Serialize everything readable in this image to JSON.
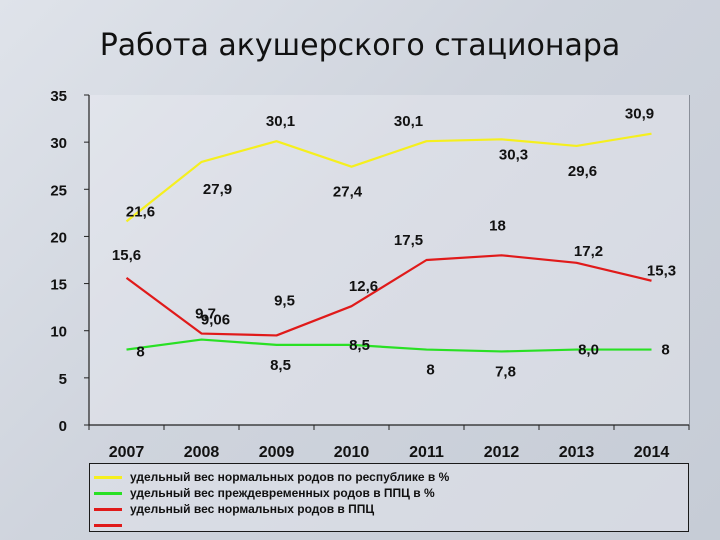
{
  "slide": {
    "title": "Работа акушерского стационара"
  },
  "chart_data": {
    "type": "line",
    "title": "",
    "xlabel": "",
    "ylabel": "",
    "categories": [
      "2007",
      "2008",
      "2009",
      "2010",
      "2011",
      "2012",
      "2013",
      "2014"
    ],
    "ylim": [
      0,
      35
    ],
    "yticks": [
      0,
      5,
      10,
      15,
      20,
      25,
      30,
      35
    ],
    "grid": false,
    "legend_position": "bottom",
    "series": [
      {
        "name": "удельный вес нормальных родов по республике в %",
        "color": "#f5ef1e",
        "values": [
          21.6,
          27.9,
          30.1,
          27.4,
          30.1,
          30.3,
          29.6,
          30.9
        ],
        "labels": [
          "21,6",
          "27,9",
          "30,1",
          "27,4",
          "30,1",
          "30,3",
          "29,6",
          "30,9"
        ]
      },
      {
        "name": "удельный вес преждевременных родов в ППЦ в %",
        "color": "#29e024",
        "values": [
          8,
          9.06,
          8.5,
          8.5,
          8,
          7.8,
          8.0,
          8
        ],
        "labels": [
          "8",
          "9,06",
          "8,5",
          "8,5",
          "8",
          "7,8",
          "8,0",
          "8"
        ]
      },
      {
        "name": "удельный вес нормальных родов в ППЦ",
        "color": "#e01a1a",
        "values": [
          15.6,
          9.7,
          9.5,
          12.6,
          17.5,
          18,
          17.2,
          15.3
        ],
        "labels": [
          "15,6",
          "9,7",
          "9,5",
          "12,6",
          "17,5",
          "18",
          "17,2",
          "15,3"
        ]
      }
    ],
    "extra_legend_swatch_color": "#e01a1a"
  }
}
